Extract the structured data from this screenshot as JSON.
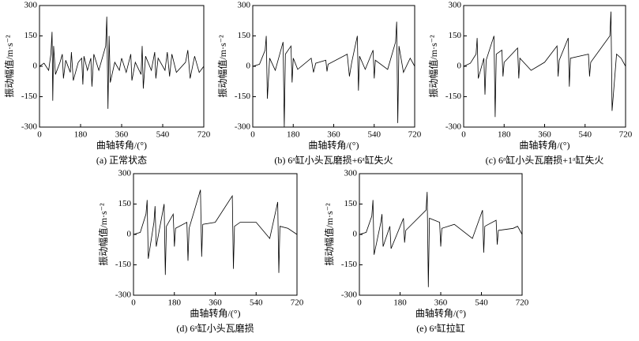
{
  "chart_data": [
    {
      "type": "line",
      "caption": "(a) 正常状态",
      "xlabel": "曲轴转角/(°)",
      "ylabel": "振动幅值/m·s⁻²",
      "color": "#000000",
      "xlim": [
        0,
        720
      ],
      "xticks": [
        0,
        180,
        360,
        540,
        720
      ],
      "ylim": [
        -300,
        300
      ],
      "yticks": [
        -300,
        -150,
        0,
        150,
        300
      ],
      "x": [
        0,
        20,
        40,
        50,
        55,
        58,
        62,
        70,
        90,
        100,
        105,
        115,
        135,
        140,
        148,
        170,
        185,
        190,
        195,
        210,
        225,
        230,
        238,
        260,
        290,
        295,
        300,
        305,
        310,
        330,
        350,
        360,
        380,
        400,
        405,
        420,
        445,
        450,
        455,
        465,
        490,
        505,
        510,
        520,
        550,
        560,
        570,
        580,
        600,
        640,
        650,
        660,
        680,
        700,
        720
      ],
      "values": [
        0,
        15,
        -20,
        60,
        170,
        -170,
        100,
        -40,
        20,
        60,
        -60,
        30,
        -30,
        70,
        -70,
        20,
        40,
        -90,
        50,
        -20,
        40,
        -100,
        60,
        -20,
        100,
        245,
        -210,
        150,
        -80,
        20,
        -20,
        40,
        -30,
        60,
        -70,
        20,
        -40,
        100,
        -110,
        50,
        -20,
        70,
        -60,
        40,
        -20,
        70,
        -50,
        60,
        -30,
        20,
        80,
        -60,
        50,
        -30,
        0
      ]
    },
    {
      "type": "line",
      "caption": "(b) 6ᵃ缸小头瓦磨损+6ᵃ缸失火",
      "xlabel": "曲轴转角/(°)",
      "ylabel": "振动幅值/m·s⁻²",
      "color": "#000000",
      "xlim": [
        0,
        720
      ],
      "xticks": [
        0,
        180,
        360,
        540,
        720
      ],
      "ylim": [
        -300,
        300
      ],
      "yticks": [
        -300,
        -150,
        0,
        150,
        300
      ],
      "x": [
        0,
        30,
        55,
        60,
        65,
        75,
        100,
        135,
        140,
        145,
        170,
        175,
        180,
        200,
        260,
        270,
        280,
        325,
        330,
        335,
        420,
        430,
        440,
        465,
        470,
        475,
        500,
        535,
        540,
        545,
        600,
        635,
        640,
        645,
        650,
        670,
        700,
        720
      ],
      "values": [
        0,
        10,
        80,
        150,
        -160,
        40,
        -20,
        120,
        -300,
        60,
        100,
        -80,
        40,
        -15,
        40,
        -30,
        15,
        30,
        -25,
        10,
        60,
        -50,
        20,
        150,
        -120,
        50,
        -15,
        80,
        -60,
        30,
        -15,
        120,
        220,
        -280,
        100,
        -30,
        40,
        0
      ]
    },
    {
      "type": "line",
      "caption": "(c) 6ᵃ缸小头瓦磨损+1ᵃ缸失火",
      "xlabel": "曲轴转角/(°)",
      "ylabel": "振动幅值/m·s⁻²",
      "color": "#000000",
      "xlim": [
        0,
        720
      ],
      "xticks": [
        0,
        180,
        360,
        540,
        720
      ],
      "ylim": [
        -300,
        300
      ],
      "yticks": [
        -300,
        -150,
        0,
        150,
        300
      ],
      "x": [
        0,
        30,
        55,
        60,
        65,
        90,
        95,
        100,
        135,
        140,
        145,
        170,
        175,
        180,
        240,
        245,
        250,
        300,
        360,
        415,
        420,
        425,
        465,
        470,
        475,
        555,
        560,
        565,
        650,
        655,
        660,
        680,
        700,
        720
      ],
      "values": [
        0,
        15,
        60,
        140,
        -60,
        40,
        -140,
        30,
        150,
        -250,
        60,
        80,
        -50,
        20,
        90,
        -60,
        40,
        -20,
        20,
        100,
        -50,
        30,
        140,
        -100,
        40,
        60,
        -50,
        20,
        150,
        270,
        -220,
        60,
        40,
        0
      ]
    },
    {
      "type": "line",
      "caption": "(d) 6ᵃ缸小头瓦磨损",
      "xlabel": "曲轴转角/(°)",
      "ylabel": "振动幅值/m·s⁻²",
      "color": "#000000",
      "xlim": [
        0,
        720
      ],
      "xticks": [
        0,
        180,
        360,
        540,
        720
      ],
      "ylim": [
        -300,
        300
      ],
      "yticks": [
        -300,
        -150,
        0,
        150,
        300
      ],
      "x": [
        0,
        30,
        55,
        60,
        65,
        90,
        95,
        100,
        135,
        140,
        145,
        175,
        180,
        185,
        235,
        240,
        245,
        295,
        300,
        305,
        360,
        435,
        440,
        445,
        470,
        540,
        600,
        635,
        640,
        645,
        680,
        720
      ],
      "values": [
        0,
        10,
        100,
        170,
        -120,
        60,
        140,
        -60,
        150,
        -200,
        40,
        100,
        -60,
        30,
        60,
        -130,
        30,
        220,
        -110,
        50,
        60,
        190,
        -170,
        40,
        60,
        60,
        -20,
        160,
        -190,
        40,
        30,
        0
      ]
    },
    {
      "type": "line",
      "caption": "(e) 6ᵃ缸拉缸",
      "xlabel": "曲轴转角/(°)",
      "ylabel": "振动幅值/m·s⁻²",
      "color": "#000000",
      "xlim": [
        0,
        720
      ],
      "xticks": [
        0,
        180,
        360,
        540,
        720
      ],
      "ylim": [
        -300,
        300
      ],
      "yticks": [
        -300,
        -150,
        0,
        150,
        300
      ],
      "x": [
        0,
        30,
        55,
        60,
        65,
        95,
        100,
        105,
        135,
        140,
        195,
        200,
        205,
        295,
        300,
        305,
        310,
        355,
        360,
        365,
        420,
        500,
        545,
        550,
        555,
        605,
        610,
        615,
        680,
        700,
        720
      ],
      "values": [
        0,
        10,
        90,
        170,
        -100,
        60,
        100,
        -60,
        40,
        -70,
        80,
        -40,
        20,
        120,
        210,
        -260,
        80,
        60,
        -60,
        30,
        50,
        -20,
        120,
        -90,
        40,
        70,
        -50,
        20,
        30,
        40,
        0
      ]
    }
  ]
}
